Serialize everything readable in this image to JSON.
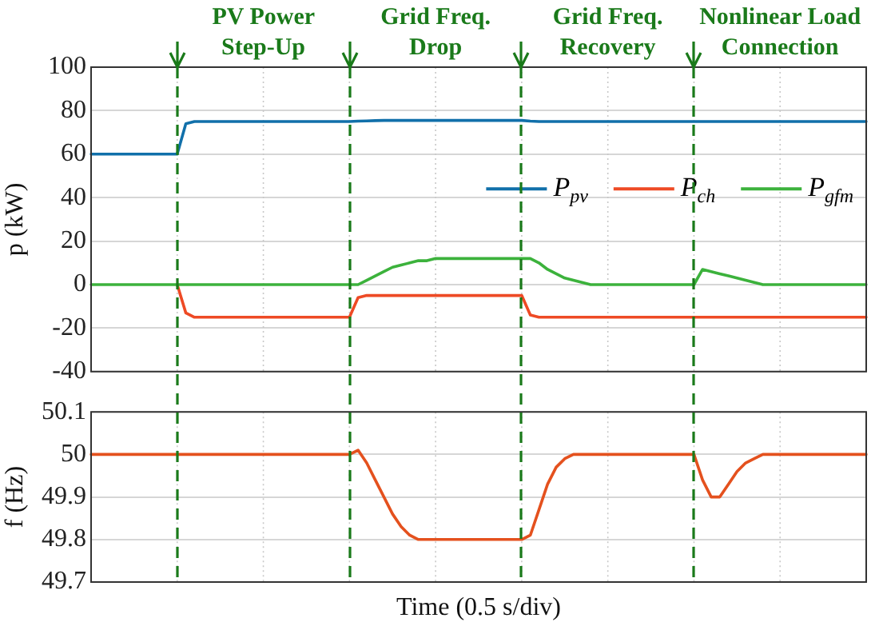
{
  "chart_data": [
    {
      "type": "line",
      "ylabel": "p (kW)",
      "categories": [
        null,
        null,
        null,
        null,
        null,
        null,
        null,
        null,
        null,
        null,
        null,
        null,
        null,
        null,
        null,
        null,
        null,
        null,
        null,
        null,
        null,
        null,
        null,
        null,
        null,
        null,
        null,
        null,
        null,
        null,
        null,
        null,
        null,
        null,
        null,
        null,
        null,
        null,
        null,
        null,
        null,
        null,
        null,
        null,
        null,
        null,
        null,
        null,
        null,
        null,
        null,
        null,
        null,
        null,
        null,
        null,
        null,
        null,
        null,
        null,
        null,
        null,
        null,
        null,
        null,
        null,
        null,
        null,
        null,
        null,
        null,
        null,
        null,
        null,
        null,
        null,
        null,
        null,
        null,
        null,
        null,
        null,
        null,
        null,
        null,
        null,
        null,
        null,
        null,
        null,
        null
      ],
      "ylim": [
        -40,
        100
      ],
      "yticks": [
        -40,
        -20,
        0,
        20,
        40,
        60,
        80,
        100
      ],
      "grid": true,
      "legend": "right",
      "tick_labels": "y",
      "line_style": "solid",
      "series": [
        {
          "name": "P$_{pv}$",
          "color": "#1170aa",
          "values": [
            60,
            60,
            60,
            60,
            60,
            60,
            60,
            60,
            60,
            60,
            60,
            74,
            75,
            75,
            75,
            75,
            75,
            75,
            75,
            75,
            75,
            75,
            75,
            75,
            75,
            75,
            75,
            75,
            75,
            75,
            75,
            75.2,
            75.3,
            75.4,
            75.5,
            75.5,
            75.5,
            75.5,
            75.5,
            75.5,
            75.5,
            75.5,
            75.5,
            75.5,
            75.5,
            75.5,
            75.5,
            75.5,
            75.5,
            75.5,
            75.5,
            75.2,
            75,
            75,
            75,
            75,
            75,
            75,
            75,
            75,
            75,
            75,
            75,
            75,
            75,
            75,
            75,
            75,
            75,
            75,
            75,
            75,
            75,
            75,
            75,
            75,
            75,
            75,
            75,
            75,
            75,
            75,
            75,
            75,
            75,
            75,
            75,
            75,
            75,
            75,
            75
          ]
        },
        {
          "name": "P$_{ch}$",
          "color": "#ee4a25",
          "values": [
            null,
            null,
            null,
            null,
            null,
            null,
            null,
            null,
            null,
            null,
            0,
            -13,
            -15,
            -15,
            -15,
            -15,
            -15,
            -15,
            -15,
            -15,
            -15,
            -15,
            -15,
            -15,
            -15,
            -15,
            -15,
            -15,
            -15,
            -15,
            -15,
            -6,
            -5,
            -5,
            -5,
            -5,
            -5,
            -5,
            -5,
            -5,
            -5,
            -5,
            -5,
            -5,
            -5,
            -5,
            -5,
            -5,
            -5,
            -5,
            -5,
            -14,
            -15,
            -15,
            -15,
            -15,
            -15,
            -15,
            -15,
            -15,
            -15,
            -15,
            -15,
            -15,
            -15,
            -15,
            -15,
            -15,
            -15,
            -15,
            -15,
            -15,
            -15,
            -15,
            -15,
            -15,
            -15,
            -15,
            -15,
            -15,
            -15,
            -15,
            -15,
            -15,
            -15,
            -15,
            -15,
            -15,
            -15,
            -15,
            -15
          ]
        },
        {
          "name": "P$_{gfm}$",
          "color": "#3cb23c",
          "values": [
            0,
            0,
            0,
            0,
            0,
            0,
            0,
            0,
            0,
            0,
            0,
            0,
            0,
            0,
            0,
            0,
            0,
            0,
            0,
            0,
            0,
            0,
            0,
            0,
            0,
            0,
            0,
            0,
            0,
            0,
            0,
            0,
            2,
            4,
            6,
            8,
            9,
            10,
            11,
            11,
            12,
            12,
            12,
            12,
            12,
            12,
            12,
            12,
            12,
            12,
            12,
            12,
            10,
            7,
            5,
            3,
            2,
            1,
            0,
            0,
            0,
            0,
            0,
            0,
            0,
            0,
            0,
            0,
            0,
            0,
            0,
            7,
            6,
            5,
            4,
            3,
            2,
            1,
            0,
            0,
            0,
            0,
            0,
            0,
            0,
            0,
            0,
            0,
            0,
            0,
            0
          ]
        }
      ],
      "annotations": [
        "PV Power Step-Up",
        "Grid Freq. Drop",
        "Grid Freq. Recovery",
        "Nonlinear Load Connection"
      ]
    },
    {
      "type": "line",
      "ylabel": "f (Hz)",
      "xlabel": "Time (0.5 s/div)",
      "categories": [
        null,
        null,
        null,
        null,
        null,
        null,
        null,
        null,
        null,
        null,
        null,
        null,
        null,
        null,
        null,
        null,
        null,
        null,
        null,
        null,
        null,
        null,
        null,
        null,
        null,
        null,
        null,
        null,
        null,
        null,
        null,
        null,
        null,
        null,
        null,
        null,
        null,
        null,
        null,
        null,
        null,
        null,
        null,
        null,
        null,
        null,
        null,
        null,
        null,
        null,
        null,
        null,
        null,
        null,
        null,
        null,
        null,
        null,
        null,
        null,
        null,
        null,
        null,
        null,
        null,
        null,
        null,
        null,
        null,
        null,
        null,
        null,
        null,
        null,
        null,
        null,
        null,
        null,
        null,
        null,
        null,
        null,
        null,
        null,
        null,
        null,
        null,
        null,
        null,
        null,
        null
      ],
      "ylim": [
        49.7,
        50.1
      ],
      "yticks": [
        49.7,
        49.8,
        49.9,
        50,
        50.1
      ],
      "grid": true,
      "tick_labels": "y",
      "line_style": "solid",
      "series": [
        {
          "color": "#e4511e",
          "values": [
            50,
            50,
            50,
            50,
            50,
            50,
            50,
            50,
            50,
            50,
            50,
            50,
            50,
            50,
            50,
            50,
            50,
            50,
            50,
            50,
            50,
            50,
            50,
            50,
            50,
            50,
            50,
            50,
            50,
            50,
            50,
            50.01,
            49.98,
            49.94,
            49.9,
            49.86,
            49.83,
            49.81,
            49.8,
            49.8,
            49.8,
            49.8,
            49.8,
            49.8,
            49.8,
            49.8,
            49.8,
            49.8,
            49.8,
            49.8,
            49.8,
            49.81,
            49.87,
            49.93,
            49.97,
            49.99,
            50,
            50,
            50,
            50,
            50,
            50,
            50,
            50,
            50,
            50,
            50,
            50,
            50,
            50,
            50,
            49.94,
            49.9,
            49.9,
            49.93,
            49.96,
            49.98,
            49.99,
            50,
            50,
            50,
            50,
            50,
            50,
            50,
            50,
            50,
            50,
            50,
            50,
            50
          ]
        }
      ]
    }
  ]
}
